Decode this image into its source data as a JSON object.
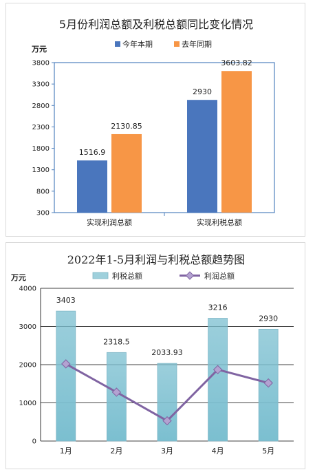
{
  "chart_data": [
    {
      "type": "bar",
      "title": "5月份利润总额及利税总额同比变化情况",
      "unit_label": "万元",
      "categories": [
        "实现利润总额",
        "实现利税总额"
      ],
      "series": [
        {
          "name": "今年本期",
          "values": [
            1516.9,
            2930
          ],
          "value_labels": [
            "1516.9",
            "2930"
          ],
          "color": "#4a76bd"
        },
        {
          "name": "去年同期",
          "values": [
            2130.85,
            3603.82
          ],
          "value_labels": [
            "2130.85",
            "3603.82"
          ],
          "color": "#f79646"
        }
      ],
      "ylim": [
        300,
        3800
      ],
      "yticks": [
        "3800",
        "3300",
        "2800",
        "2300",
        "1800",
        "1300",
        "800",
        "300"
      ],
      "legend_position": "top",
      "grid": false
    },
    {
      "type": "bar",
      "title": "2022年1-5月利润与利税总额趋势图",
      "unit_label": "万元",
      "categories": [
        "1月",
        "2月",
        "3月",
        "4月",
        "5月"
      ],
      "series": [
        {
          "name": "利税总额",
          "kind": "bar",
          "values": [
            3403,
            2318.5,
            2033.93,
            3216,
            2930
          ],
          "value_labels": [
            "3403",
            "2318.5",
            "2033.93",
            "3216",
            "2930"
          ],
          "color": "#9ed0dc"
        },
        {
          "name": "利润总额",
          "kind": "line",
          "values": [
            2020,
            1280,
            530,
            1870,
            1520
          ],
          "color": "#8064a2"
        }
      ],
      "ylim": [
        0,
        4000
      ],
      "yticks": [
        "4000",
        "3000",
        "2000",
        "1000",
        "0"
      ],
      "legend_position": "top",
      "grid": true
    }
  ]
}
